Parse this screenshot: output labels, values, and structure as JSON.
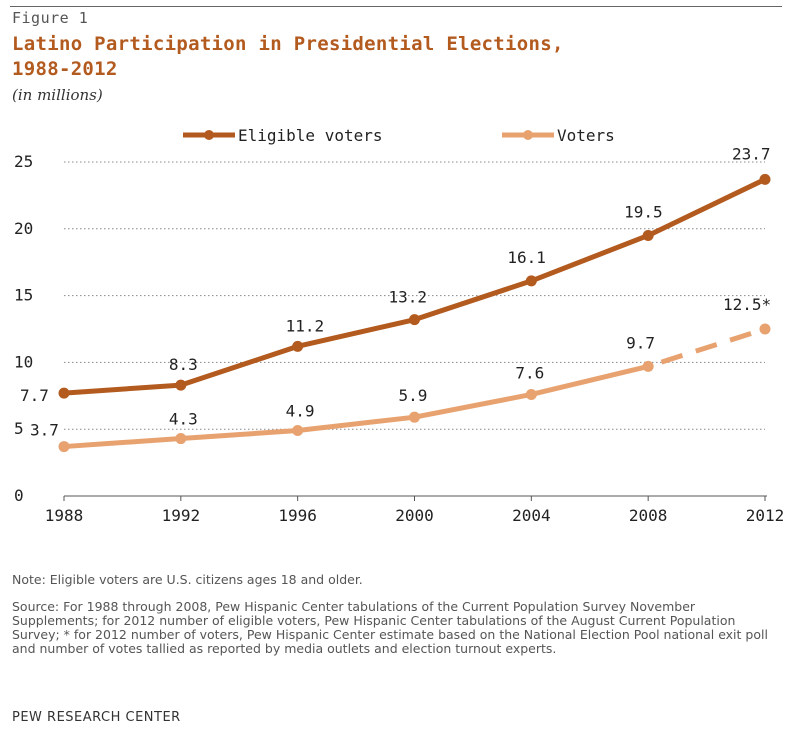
{
  "figure_label": "Figure 1",
  "title_line1": "Latino Participation in Presidential Elections,",
  "title_line2": "1988-2012",
  "subtitle": "(in millions)",
  "note": "Note: Eligible voters are U.S. citizens ages 18 and older.",
  "source": "Source: For 1988 through 2008, Pew Hispanic Center tabulations of the Current Population Survey November Supplements; for 2012 number of eligible voters, Pew Hispanic Center tabulations of the August Current Population Survey; * for 2012 number of voters, Pew Hispanic Center estimate based on the National Election Pool national exit poll and number of votes tallied as reported by media outlets and election turnout experts.",
  "organization": "PEW RESEARCH CENTER",
  "chart_data": {
    "type": "line",
    "title": "Latino Participation in Presidential Elections, 1988-2012",
    "ylabel": "(in millions)",
    "x": [
      "1988",
      "1992",
      "1996",
      "2000",
      "2004",
      "2008",
      "2012"
    ],
    "ylim": [
      0,
      25
    ],
    "yticks": [
      0,
      5,
      10,
      15,
      20,
      25
    ],
    "grid": "horizontal dotted",
    "legend_position": "top",
    "series": [
      {
        "name": "Eligible voters",
        "color": "#b35a1f",
        "values": [
          7.7,
          8.3,
          11.2,
          13.2,
          16.1,
          19.5,
          23.7
        ],
        "labels": [
          "7.7",
          "8.3",
          "11.2",
          "13.2",
          "16.1",
          "19.5",
          "23.7"
        ]
      },
      {
        "name": "Voters",
        "color": "#e8a26f",
        "values": [
          3.7,
          4.3,
          4.9,
          5.9,
          7.6,
          9.7,
          12.5
        ],
        "labels": [
          "3.7",
          "4.3",
          "4.9",
          "5.9",
          "7.6",
          "9.7",
          "12.5*"
        ],
        "dashed_last_segment": true
      }
    ]
  }
}
